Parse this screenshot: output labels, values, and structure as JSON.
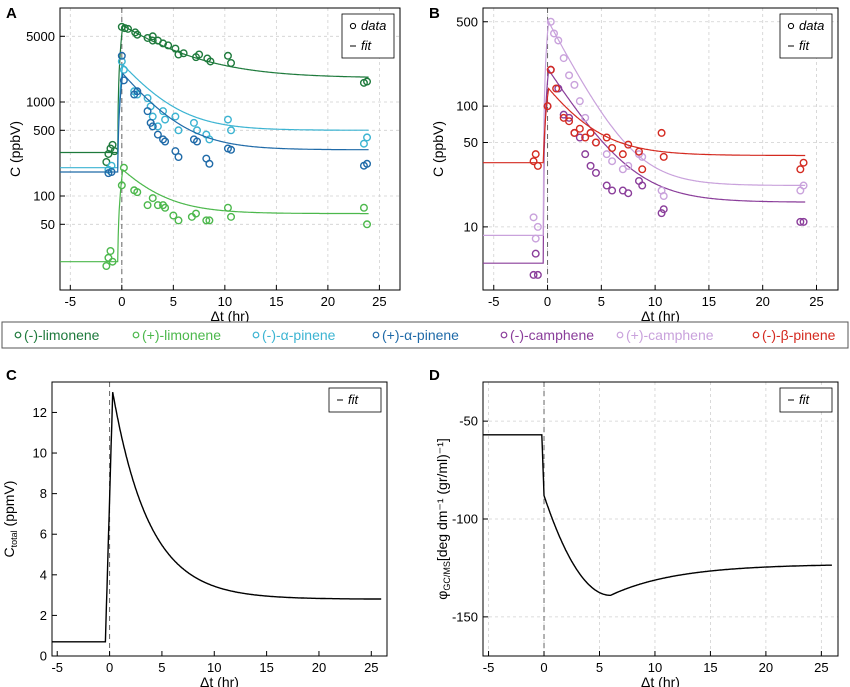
{
  "colors": {
    "limonene_minus": "#1e7a3c",
    "limonene_plus": "#4cb84c",
    "apinene_minus": "#3cb4d2",
    "apinene_plus": "#1f6aa8",
    "camphene_minus": "#8a3d9a",
    "camphene_plus": "#c9a2dc",
    "bpinene_minus": "#d42a20",
    "axis": "#000000",
    "grid": "#d0d0d0"
  },
  "legend": {
    "items": [
      {
        "label": "(-)-limonene",
        "color": "#1e7a3c"
      },
      {
        "label": "(+)-limonene",
        "color": "#4cb84c"
      },
      {
        "label": "(-)-α-pinene",
        "color": "#3cb4d2"
      },
      {
        "label": "(+)-α-pinene",
        "color": "#1f6aa8"
      },
      {
        "label": "(-)-camphene",
        "color": "#8a3d9a"
      },
      {
        "label": "(+)-camphene",
        "color": "#c9a2dc"
      },
      {
        "label": "(-)-β-pinene",
        "color": "#d42a20"
      }
    ]
  },
  "chart_data": [
    {
      "panel": "A",
      "type": "scatter",
      "xlabel": "Δt (hr)",
      "ylabel": "C (ppbV)",
      "xlim": [
        -6,
        27
      ],
      "ylim": [
        10,
        10000
      ],
      "yscale": "log",
      "xticks": [
        "-5",
        "0",
        "5",
        "10",
        "15",
        "20",
        "25"
      ],
      "yticks": [
        {
          "label": "50",
          "value": 50
        },
        {
          "label": "100",
          "value": 100
        },
        {
          "label": "500",
          "value": 500
        },
        {
          "label": "1000",
          "value": 1000
        },
        {
          "label": "5000",
          "value": 5000
        }
      ],
      "grid": true,
      "legend_box": {
        "data": "data",
        "fit": "fit"
      },
      "series": [
        {
          "name": "(-)-limonene",
          "color": "#1e7a3c",
          "pre": 290,
          "peak": 6500,
          "plateau": 1800,
          "tau": 5,
          "points": [
            [
              -1.5,
              230
            ],
            [
              -1.3,
              280
            ],
            [
              -1.1,
              320
            ],
            [
              -0.9,
              350
            ],
            [
              -0.7,
              300
            ],
            [
              0,
              6300
            ],
            [
              0.3,
              6100
            ],
            [
              0.6,
              6000
            ],
            [
              1.3,
              5500
            ],
            [
              1.5,
              5200
            ],
            [
              2.5,
              4800
            ],
            [
              3,
              5000
            ],
            [
              3,
              4500
            ],
            [
              3.5,
              4500
            ],
            [
              4,
              4200
            ],
            [
              4.5,
              4000
            ],
            [
              5.2,
              3700
            ],
            [
              5.5,
              3200
            ],
            [
              6,
              3300
            ],
            [
              7.2,
              3000
            ],
            [
              7.5,
              3200
            ],
            [
              8.3,
              2900
            ],
            [
              8.6,
              2700
            ],
            [
              10.3,
              3100
            ],
            [
              10.6,
              2600
            ],
            [
              23.5,
              1600
            ],
            [
              23.8,
              1650
            ]
          ]
        },
        {
          "name": "(+)-limonene",
          "color": "#4cb84c",
          "pre": 20,
          "peak": 190,
          "plateau": 65,
          "tau": 3,
          "points": [
            [
              -1.5,
              18
            ],
            [
              -1.3,
              22
            ],
            [
              -1.1,
              26
            ],
            [
              -0.9,
              20
            ],
            [
              0,
              130
            ],
            [
              0.2,
              200
            ],
            [
              1.2,
              115
            ],
            [
              1.5,
              110
            ],
            [
              2.5,
              80
            ],
            [
              3,
              95
            ],
            [
              3.5,
              80
            ],
            [
              4,
              80
            ],
            [
              4.2,
              75
            ],
            [
              5,
              62
            ],
            [
              5.5,
              55
            ],
            [
              6.8,
              60
            ],
            [
              7.2,
              65
            ],
            [
              8.2,
              55
            ],
            [
              8.5,
              55
            ],
            [
              10.3,
              75
            ],
            [
              10.6,
              60
            ],
            [
              23.5,
              75
            ],
            [
              23.8,
              50
            ]
          ]
        },
        {
          "name": "(-)-α-pinene",
          "color": "#3cb4d2",
          "pre": 200,
          "peak": 2500,
          "plateau": 500,
          "tau": 3,
          "points": [
            [
              -1.3,
              190
            ],
            [
              -1,
              210
            ],
            [
              0,
              2700
            ],
            [
              0.2,
              2200
            ],
            [
              1.2,
              1300
            ],
            [
              1.5,
              1200
            ],
            [
              2.5,
              1100
            ],
            [
              2.8,
              900
            ],
            [
              3,
              700
            ],
            [
              3.5,
              550
            ],
            [
              4,
              800
            ],
            [
              4.2,
              650
            ],
            [
              5.2,
              700
            ],
            [
              5.5,
              500
            ],
            [
              7,
              600
            ],
            [
              7.3,
              500
            ],
            [
              8.2,
              450
            ],
            [
              8.5,
              400
            ],
            [
              10.3,
              650
            ],
            [
              10.6,
              500
            ],
            [
              23.5,
              360
            ],
            [
              23.8,
              420
            ]
          ]
        },
        {
          "name": "(+)-α-pinene",
          "color": "#1f6aa8",
          "pre": 180,
          "peak": 2000,
          "plateau": 310,
          "tau": 3,
          "points": [
            [
              -1.3,
              175
            ],
            [
              -1,
              180
            ],
            [
              0,
              3100
            ],
            [
              0.2,
              1700
            ],
            [
              1.2,
              1200
            ],
            [
              1.5,
              1300
            ],
            [
              2.5,
              800
            ],
            [
              2.8,
              600
            ],
            [
              3,
              550
            ],
            [
              3.5,
              450
            ],
            [
              4,
              400
            ],
            [
              4.2,
              380
            ],
            [
              5.2,
              300
            ],
            [
              5.5,
              260
            ],
            [
              7,
              400
            ],
            [
              7.3,
              380
            ],
            [
              8.2,
              250
            ],
            [
              8.5,
              220
            ],
            [
              10.3,
              320
            ],
            [
              10.6,
              310
            ],
            [
              23.5,
              210
            ],
            [
              23.8,
              220
            ]
          ]
        }
      ]
    },
    {
      "panel": "B",
      "type": "scatter",
      "xlabel": "Δt (hr)",
      "ylabel": "C (ppbV)",
      "xlim": [
        -6,
        27
      ],
      "ylim": [
        3,
        650
      ],
      "yscale": "log",
      "xticks": [
        "-5",
        "0",
        "5",
        "10",
        "15",
        "20",
        "25"
      ],
      "yticks": [
        {
          "label": "10",
          "value": 10
        },
        {
          "label": "50",
          "value": 50
        },
        {
          "label": "100",
          "value": 100
        },
        {
          "label": "500",
          "value": 500
        }
      ],
      "grid": true,
      "legend_box": {
        "data": "data",
        "fit": "fit"
      },
      "series": [
        {
          "name": "(-)-camphene",
          "color": "#8a3d9a",
          "pre": 5,
          "peak": 200,
          "plateau": 16,
          "tau": 3,
          "points": [
            [
              -1.3,
              4
            ],
            [
              -1.1,
              6
            ],
            [
              -0.9,
              4
            ],
            [
              0,
              100
            ],
            [
              0.3,
              200
            ],
            [
              1,
              140
            ],
            [
              1.5,
              85
            ],
            [
              2,
              80
            ],
            [
              2.5,
              60
            ],
            [
              3,
              55
            ],
            [
              3.5,
              40
            ],
            [
              4,
              32
            ],
            [
              4.5,
              28
            ],
            [
              5.5,
              22
            ],
            [
              6,
              20
            ],
            [
              7,
              20
            ],
            [
              7.5,
              19
            ],
            [
              8.5,
              24
            ],
            [
              8.8,
              22
            ],
            [
              10.6,
              13
            ],
            [
              10.8,
              14
            ],
            [
              23.5,
              11
            ],
            [
              23.8,
              11
            ]
          ]
        },
        {
          "name": "(+)-camphene",
          "color": "#c9a2dc",
          "pre": 8.5,
          "peak": 500,
          "plateau": 22,
          "tau": 2.5,
          "points": [
            [
              -1.3,
              12
            ],
            [
              -1.1,
              8
            ],
            [
              -0.9,
              10
            ],
            [
              0,
              100
            ],
            [
              0.3,
              500
            ],
            [
              0.6,
              400
            ],
            [
              1,
              350
            ],
            [
              1.5,
              250
            ],
            [
              2,
              180
            ],
            [
              2.5,
              150
            ],
            [
              3,
              110
            ],
            [
              3.5,
              80
            ],
            [
              4,
              60
            ],
            [
              4.5,
              50
            ],
            [
              5.5,
              40
            ],
            [
              6,
              35
            ],
            [
              7,
              30
            ],
            [
              7.5,
              32
            ],
            [
              8.5,
              40
            ],
            [
              8.8,
              38
            ],
            [
              10.6,
              20
            ],
            [
              10.8,
              18
            ],
            [
              23.5,
              20
            ],
            [
              23.8,
              22
            ]
          ]
        },
        {
          "name": "(-)-β-pinene",
          "color": "#d42a20",
          "pre": 34,
          "peak": 140,
          "plateau": 39,
          "tau": 3,
          "points": [
            [
              -1.3,
              35
            ],
            [
              -1.1,
              40
            ],
            [
              -0.9,
              32
            ],
            [
              0,
              100
            ],
            [
              0.3,
              200
            ],
            [
              0.8,
              140
            ],
            [
              1.5,
              80
            ],
            [
              2,
              75
            ],
            [
              2.5,
              60
            ],
            [
              3,
              65
            ],
            [
              3.5,
              55
            ],
            [
              4,
              60
            ],
            [
              4.5,
              50
            ],
            [
              5.5,
              55
            ],
            [
              6,
              45
            ],
            [
              7,
              40
            ],
            [
              7.5,
              48
            ],
            [
              8.5,
              42
            ],
            [
              8.8,
              30
            ],
            [
              10.6,
              60
            ],
            [
              10.8,
              38
            ],
            [
              23.5,
              30
            ],
            [
              23.8,
              34
            ]
          ]
        }
      ]
    },
    {
      "panel": "C",
      "type": "line",
      "xlabel": "Δt (hr)",
      "ylabel_main": "C",
      "ylabel_sub": "total",
      "ylabel_unit": " (ppmV)",
      "xlim": [
        -5.5,
        26.5
      ],
      "ylim": [
        0,
        13.5
      ],
      "yscale": "linear",
      "xticks": [
        "-5",
        "0",
        "5",
        "10",
        "15",
        "20",
        "25"
      ],
      "yticks": [
        "0",
        "2",
        "4",
        "6",
        "8",
        "10",
        "12"
      ],
      "grid": false,
      "legend_box": {
        "fit": "fit"
      },
      "series": [
        {
          "name": "fit",
          "pre": 0.7,
          "peak": 13,
          "peak_t": 0.3,
          "plateau": 2.8,
          "tau": 3.5
        }
      ]
    },
    {
      "panel": "D",
      "type": "line",
      "xlabel": "Δt (hr)",
      "ylabel_main": "φ",
      "ylabel_sub": "GC/MS",
      "ylabel_unit": "[deg dm⁻¹ (gr/ml)⁻¹]",
      "xlim": [
        -5.5,
        26.5
      ],
      "ylim": [
        -170,
        -30
      ],
      "yscale": "linear",
      "xticks": [
        "-5",
        "0",
        "5",
        "10",
        "15",
        "20",
        "25"
      ],
      "yticks": [
        "-50",
        "-100",
        "-150"
      ],
      "grid": true,
      "legend_box": {
        "fit": "fit"
      },
      "series": [
        {
          "name": "fit",
          "pre": -57,
          "drop": -88,
          "min": -139,
          "min_t": 6,
          "final": -123
        }
      ]
    }
  ]
}
